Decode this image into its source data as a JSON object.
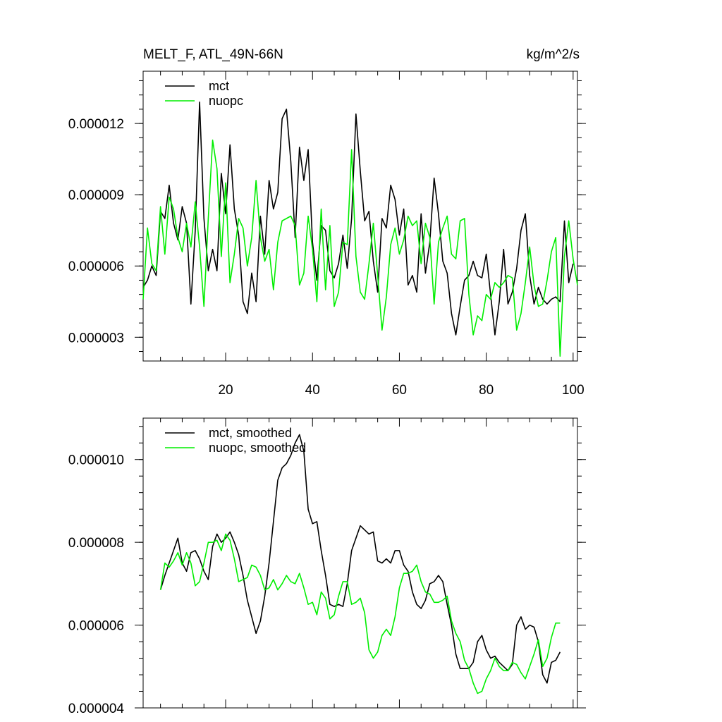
{
  "chart_data": [
    {
      "type": "line",
      "title": "MELT_F, ATL_49N-66N",
      "units": "kg/m^2/s",
      "xlabel": "",
      "ylabel": "",
      "xlim": [
        1,
        101
      ],
      "ylim": [
        2e-06,
        1.42e-05
      ],
      "x_ticks": [
        20,
        40,
        60,
        80,
        100
      ],
      "x_tick_labels": [
        "20",
        "40",
        "60",
        "80",
        "100"
      ],
      "y_ticks": [
        3e-06,
        6e-06,
        9e-06,
        1.2e-05
      ],
      "y_tick_labels": [
        "0.000003",
        "0.000006",
        "0.000009",
        "0.000012"
      ],
      "legend_position": "top-left",
      "series": [
        {
          "name": "mct",
          "color": "#000000",
          "values": [
            5.1e-06,
            5.4e-06,
            6e-06,
            5.6e-06,
            8.3e-06,
            8e-06,
            9.4e-06,
            7.8e-06,
            7.1e-06,
            8.5e-06,
            7.8e-06,
            4.4e-06,
            7.5e-06,
            1.29e-05,
            8e-06,
            5.8e-06,
            6.7e-06,
            5.8e-06,
            9.9e-06,
            8.2e-06,
            1.11e-05,
            8.4e-06,
            7.3e-06,
            4.5e-06,
            4e-06,
            5.7e-06,
            4.5e-06,
            8.1e-06,
            6.5e-06,
            9.6e-06,
            8.4e-06,
            9.1e-06,
            1.22e-05,
            1.26e-05,
            1.04e-05,
            7.2e-06,
            1.1e-05,
            9.6e-06,
            1.09e-05,
            7e-06,
            5.4e-06,
            7.7e-06,
            7.5e-06,
            5.8e-06,
            5.5e-06,
            6.1e-06,
            7.3e-06,
            5.9e-06,
            8e-06,
            1.24e-05,
            1e-05,
            7.9e-06,
            8.3e-06,
            6.2e-06,
            4.9e-06,
            8e-06,
            7.6e-06,
            9.4e-06,
            8.8e-06,
            7.3e-06,
            8.4e-06,
            5.2e-06,
            5.6e-06,
            4.9e-06,
            8.2e-06,
            5.7e-06,
            7e-06,
            9.7e-06,
            8.2e-06,
            6.2e-06,
            5.7e-06,
            4e-06,
            3.1e-06,
            4.3e-06,
            5.4e-06,
            5.6e-06,
            6.2e-06,
            5.6e-06,
            5.5e-06,
            6.5e-06,
            4.8e-06,
            3.1e-06,
            4.5e-06,
            6.7e-06,
            4.4e-06,
            4.9e-06,
            5.9e-06,
            7.5e-06,
            8.2e-06,
            5.6e-06,
            4.4e-06,
            5.1e-06,
            4.6e-06,
            4.4e-06,
            4.6e-06,
            4.7e-06,
            4.5e-06,
            7.9e-06,
            5.3e-06,
            6.1e-06
          ]
        },
        {
          "name": "nuopc",
          "color": "#00ee00",
          "values": [
            4.6e-06,
            7.6e-06,
            6.1e-06,
            5.8e-06,
            8.5e-06,
            6.5e-06,
            8.9e-06,
            8.4e-06,
            7.2e-06,
            6.6e-06,
            7.8e-06,
            6.8e-06,
            8.7e-06,
            6.8e-06,
            4.3e-06,
            8e-06,
            1.13e-05,
            1.01e-05,
            6.4e-06,
            9.5e-06,
            5.3e-06,
            6.5e-06,
            8e-06,
            7.6e-06,
            6e-06,
            7.2e-06,
            9.6e-06,
            7.2e-06,
            6.2e-06,
            6.7e-06,
            5e-06,
            7e-06,
            7.9e-06,
            8e-06,
            8.1e-06,
            7.7e-06,
            5.2e-06,
            5.7e-06,
            8.1e-06,
            6.7e-06,
            4.5e-06,
            8.4e-06,
            5e-06,
            7.7e-06,
            4.3e-06,
            4.9e-06,
            7e-06,
            6.9e-06,
            1.09e-05,
            6.4e-06,
            4.9e-06,
            4.6e-06,
            6.1e-06,
            7.8e-06,
            5.6e-06,
            3.3e-06,
            4.7e-06,
            6.9e-06,
            7.6e-06,
            6.5e-06,
            7.1e-06,
            8.1e-06,
            7.7e-06,
            7.9e-06,
            6.1e-06,
            7.8e-06,
            7.2e-06,
            4.4e-06,
            7e-06,
            7.6e-06,
            8.1e-06,
            6.5e-06,
            6.3e-06,
            7.9e-06,
            8e-06,
            4.8e-06,
            3.1e-06,
            3.9e-06,
            3.7e-06,
            4.8e-06,
            4.6e-06,
            5.3e-06,
            5.1e-06,
            5.3e-06,
            5.6e-06,
            5.5e-06,
            3.3e-06,
            4e-06,
            5.3e-06,
            6.8e-06,
            5.2e-06,
            4.3e-06,
            4.4e-06,
            5.4e-06,
            6.6e-06,
            7.2e-06,
            2.2e-06,
            6.4e-06,
            7.9e-06,
            6.3e-06,
            5.2e-06
          ]
        }
      ]
    },
    {
      "type": "line",
      "title": "",
      "xlabel": "",
      "ylabel": "",
      "xlim": [
        1,
        101
      ],
      "ylim": [
        4e-06,
        1.1e-05
      ],
      "x_ticks": [
        20,
        40,
        60,
        80,
        100
      ],
      "y_ticks": [
        4e-06,
        6e-06,
        8e-06,
        1e-05
      ],
      "y_tick_labels": [
        "0.000004",
        "0.000006",
        "0.000008",
        "0.000010"
      ],
      "legend_position": "top-left",
      "series": [
        {
          "name": "mct, smoothed",
          "color": "#000000",
          "x_start": 5,
          "values": [
            6.85e-06,
            7.2e-06,
            7.5e-06,
            7.8e-06,
            8.1e-06,
            7.5e-06,
            7.3e-06,
            7.75e-06,
            7.8e-06,
            7.6e-06,
            7.3e-06,
            7.1e-06,
            7.9e-06,
            8.2e-06,
            8e-06,
            8.1e-06,
            8.25e-06,
            8e-06,
            7.7e-06,
            7.2e-06,
            6.6e-06,
            6.2e-06,
            5.8e-06,
            6.1e-06,
            6.7e-06,
            7.5e-06,
            8.5e-06,
            9.5e-06,
            9.8e-06,
            9.9e-06,
            1.01e-05,
            1.04e-05,
            1.06e-05,
            1.02e-05,
            8.8e-06,
            8.45e-06,
            8.5e-06,
            7.8e-06,
            7.2e-06,
            6.5e-06,
            6.45e-06,
            6.5e-06,
            6.45e-06,
            7e-06,
            7.8e-06,
            8.1e-06,
            8.4e-06,
            8.3e-06,
            8.2e-06,
            8.25e-06,
            7.55e-06,
            7.5e-06,
            7.6e-06,
            7.5e-06,
            7.8e-06,
            7.8e-06,
            7.45e-06,
            7.3e-06,
            6.8e-06,
            6.5e-06,
            6.4e-06,
            6.6e-06,
            7e-06,
            7.05e-06,
            7.2e-06,
            7.05e-06,
            6.5e-06,
            6e-06,
            5.3e-06,
            4.95e-06,
            4.95e-06,
            4.95e-06,
            5.1e-06,
            5.6e-06,
            5.75e-06,
            5.4e-06,
            5.2e-06,
            5.25e-06,
            5.1e-06,
            5e-06,
            4.9e-06,
            5.05e-06,
            6e-06,
            6.2e-06,
            5.9e-06,
            6e-06,
            5.95e-06,
            5.6e-06,
            4.8e-06,
            4.6e-06,
            5.1e-06,
            5.15e-06,
            5.35e-06
          ]
        },
        {
          "name": "nuopc, smoothed",
          "color": "#00ee00",
          "x_start": 5,
          "values": [
            6.85e-06,
            7.5e-06,
            7.4e-06,
            7.55e-06,
            7.75e-06,
            7.45e-06,
            7.75e-06,
            7.5e-06,
            6.95e-06,
            7.05e-06,
            7.5e-06,
            8e-06,
            8e-06,
            8.05e-06,
            7.8e-06,
            8.2e-06,
            8.05e-06,
            7.6e-06,
            7.05e-06,
            7.1e-06,
            7.15e-06,
            7.45e-06,
            7.4e-06,
            7.2e-06,
            6.85e-06,
            6.9e-06,
            7.1e-06,
            6.85e-06,
            7e-06,
            7.2e-06,
            7.05e-06,
            7e-06,
            7.25e-06,
            6.9e-06,
            6.5e-06,
            6.55e-06,
            6.25e-06,
            6.8e-06,
            6.65e-06,
            6.15e-06,
            6.25e-06,
            6.7e-06,
            7.05e-06,
            7.05e-06,
            6.5e-06,
            6.55e-06,
            6.65e-06,
            6.3e-06,
            5.4e-06,
            5.2e-06,
            5.35e-06,
            5.75e-06,
            5.9e-06,
            5.75e-06,
            6.2e-06,
            6.9e-06,
            7.25e-06,
            7.25e-06,
            7.3e-06,
            7.45e-06,
            7.05e-06,
            6.8e-06,
            6.75e-06,
            6.55e-06,
            6.55e-06,
            6.6e-06,
            6.7e-06,
            6.1e-06,
            5.8e-06,
            5.6e-06,
            5.15e-06,
            4.95e-06,
            4.6e-06,
            4.35e-06,
            4.4e-06,
            4.7e-06,
            4.9e-06,
            5.2e-06,
            5e-06,
            4.9e-06,
            4.9e-06,
            5.1e-06,
            5.05e-06,
            4.85e-06,
            4.7e-06,
            5e-06,
            5.3e-06,
            5.65e-06,
            5e-06,
            5.2e-06,
            5.7e-06,
            6.05e-06,
            6.05e-06
          ]
        }
      ]
    }
  ]
}
